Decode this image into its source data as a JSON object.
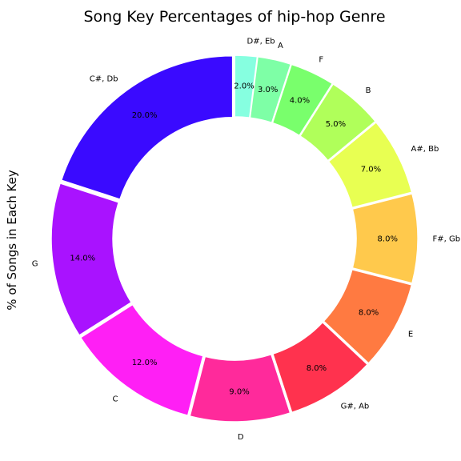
{
  "chart_data": {
    "type": "pie",
    "title": "Song Key Percentages of hip-hop Genre",
    "ylabel": "% of Songs in Each Key",
    "categories": [
      "C#, Db",
      "G",
      "C",
      "D",
      "G#, Ab",
      "E",
      "F#, Gb",
      "A#, Bb",
      "B",
      "F",
      "A",
      "D#, Eb"
    ],
    "values": [
      20.0,
      14.0,
      12.0,
      9.0,
      8.0,
      8.0,
      8.0,
      7.0,
      5.0,
      4.0,
      3.0,
      2.0
    ],
    "value_labels": [
      "20.0%",
      "14.0%",
      "12.0%",
      "9.0%",
      "8.0%",
      "8.0%",
      "8.0%",
      "7.0%",
      "5.0%",
      "4.0%",
      "3.0%",
      "2.0%"
    ],
    "colors": [
      "#3a0aff",
      "#a912ff",
      "#ff1ff5",
      "#ff2a9b",
      "#ff324e",
      "#ff7a41",
      "#ffc94c",
      "#e8ff52",
      "#b0ff5a",
      "#79ff6c",
      "#7effa6",
      "#86ffe0"
    ],
    "donut": true,
    "start_angle_deg": 90,
    "direction": "counterclockwise",
    "legend": "none"
  }
}
